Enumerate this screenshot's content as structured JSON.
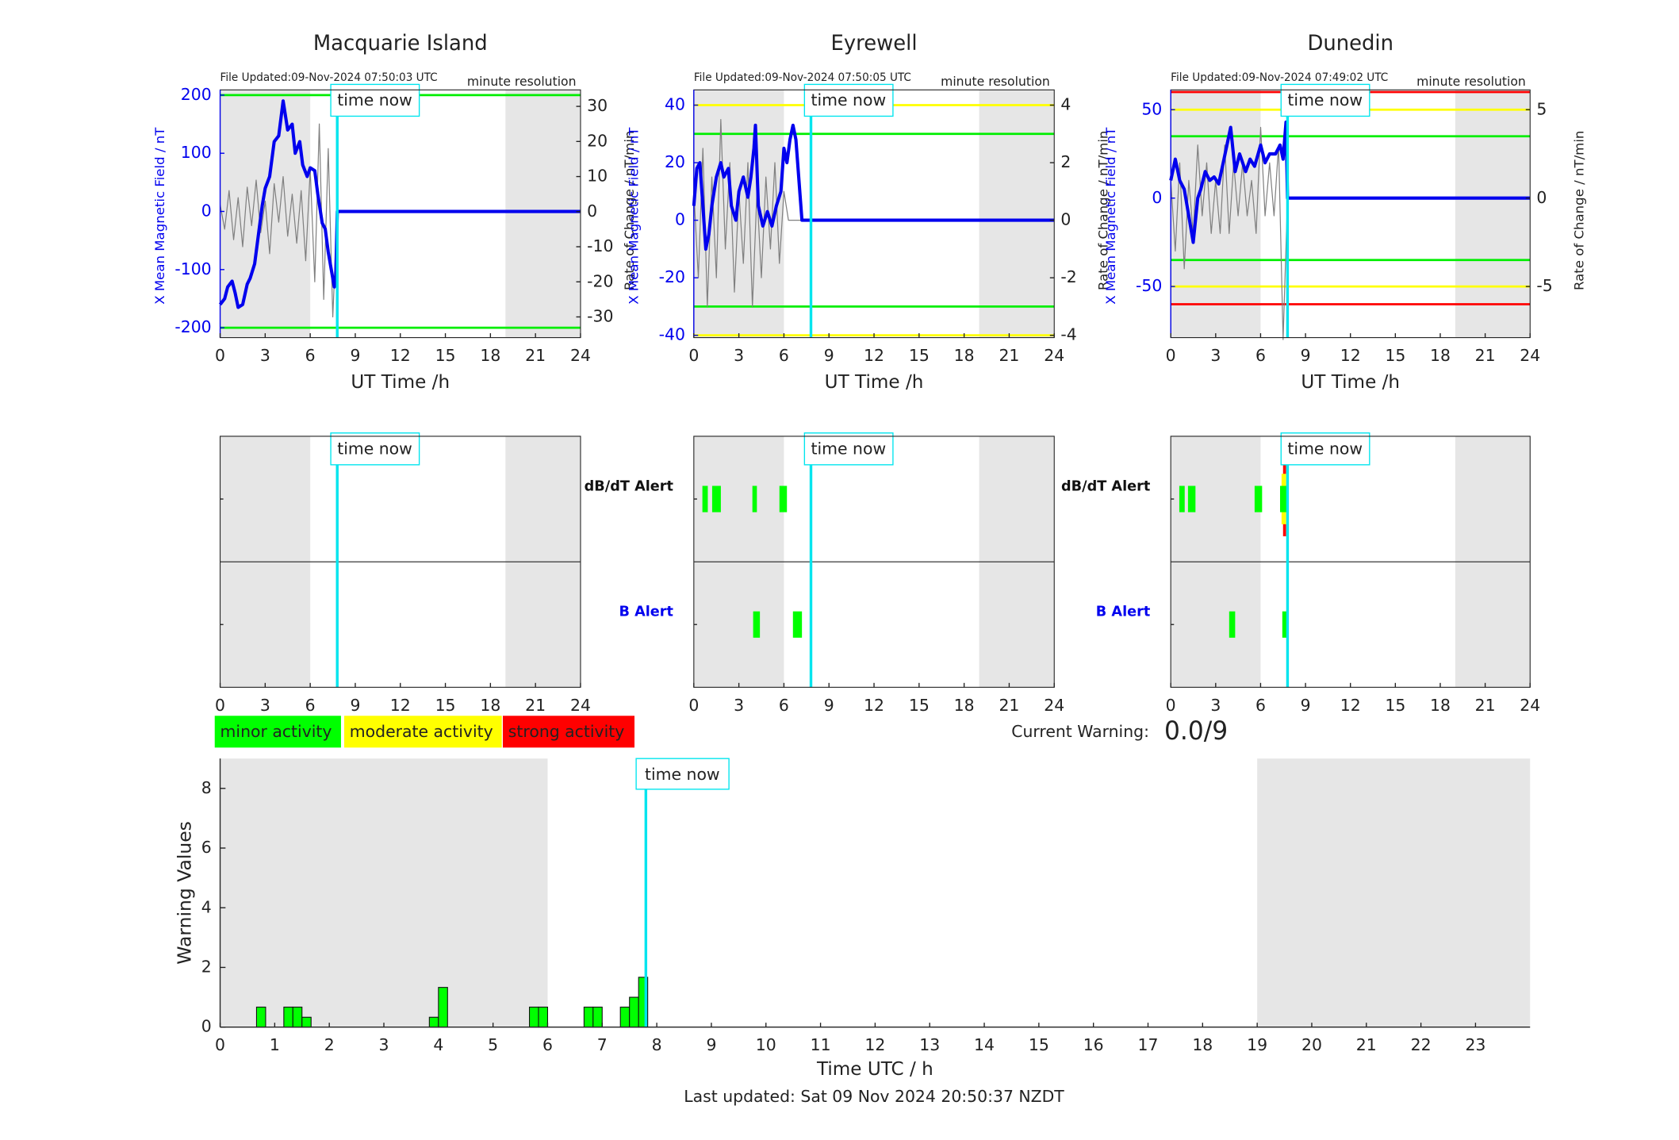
{
  "chart_data": [
    {
      "type": "line",
      "title": "Macquarie Island",
      "file_updated": "File Updated:09-Nov-2024 07:50:03 UTC",
      "resolution": "minute resolution",
      "xlabel": "UT Time /h",
      "ylabel": "X Mean Magnetic Field / nT",
      "y2label": "Rate of Change / nT/min",
      "xlim": [
        0,
        24
      ],
      "xticks": [
        0,
        3,
        6,
        9,
        12,
        15,
        18,
        21,
        24
      ],
      "ylim": [
        -217,
        209
      ],
      "yticks": [
        -200,
        -100,
        0,
        100,
        200
      ],
      "y2lim": [
        -35.9,
        34.7
      ],
      "y2ticks": [
        -30,
        -20,
        -10,
        0,
        10,
        20,
        30
      ],
      "shaded": [
        [
          0,
          6
        ],
        [
          19,
          24
        ]
      ],
      "now": {
        "value": 7.8,
        "label": "time now"
      },
      "hlines": [
        {
          "value": 200,
          "color": "#00ee00"
        },
        {
          "value": -200,
          "color": "#00ee00"
        }
      ],
      "series": [
        {
          "color": "#808080",
          "axis": "y2",
          "x": [
            0,
            0.3,
            0.6,
            0.9,
            1.2,
            1.5,
            1.8,
            2.1,
            2.4,
            2.7,
            3.0,
            3.3,
            3.6,
            3.9,
            4.2,
            4.5,
            4.8,
            5.1,
            5.4,
            5.7,
            6.0,
            6.3,
            6.6,
            6.9,
            7.2,
            7.5,
            7.8
          ],
          "values": [
            2,
            -5,
            6,
            -8,
            4,
            -10,
            7,
            -4,
            9,
            -6,
            3,
            -12,
            8,
            -3,
            10,
            -7,
            5,
            -9,
            6,
            -14,
            12,
            -20,
            25,
            -25,
            18,
            -30,
            0
          ]
        },
        {
          "color": "#0000ee",
          "axis": "y",
          "x": [
            0,
            0.3,
            0.5,
            0.8,
            1.0,
            1.2,
            1.5,
            1.8,
            2.0,
            2.3,
            2.5,
            2.8,
            3.0,
            3.3,
            3.6,
            3.9,
            4.2,
            4.5,
            4.8,
            5.0,
            5.3,
            5.5,
            5.8,
            6.0,
            6.3,
            6.5,
            6.8,
            7.0,
            7.2,
            7.4,
            7.6,
            7.7,
            7.8,
            24
          ],
          "values": [
            -160,
            -150,
            -130,
            -120,
            -140,
            -165,
            -160,
            -125,
            -115,
            -90,
            -50,
            10,
            40,
            60,
            120,
            130,
            190,
            140,
            150,
            100,
            120,
            80,
            60,
            75,
            70,
            30,
            -20,
            -30,
            -70,
            -100,
            -130,
            -110,
            0,
            0
          ]
        }
      ]
    },
    {
      "type": "line",
      "title": "Eyrewell",
      "file_updated": "File Updated:09-Nov-2024 07:50:05 UTC",
      "resolution": "minute resolution",
      "xlabel": "UT Time /h",
      "ylabel": "X Mean Magnetic Field / nT",
      "y2label": "Rate of Change / nT/min",
      "xlim": [
        0,
        24
      ],
      "xticks": [
        0,
        3,
        6,
        9,
        12,
        15,
        18,
        21,
        24
      ],
      "ylim": [
        -40.8,
        45.3
      ],
      "yticks": [
        -40,
        -20,
        0,
        20,
        40
      ],
      "y2lim": [
        -4.08,
        4.53
      ],
      "y2ticks": [
        -4,
        -2,
        0,
        2,
        4
      ],
      "shaded": [
        [
          0,
          6
        ],
        [
          19,
          24
        ]
      ],
      "now": {
        "value": 7.8,
        "label": "time now"
      },
      "hlines": [
        {
          "value": 40,
          "color": "#ffff00"
        },
        {
          "value": -40,
          "color": "#ffff00"
        },
        {
          "value": 30,
          "color": "#00ee00"
        },
        {
          "value": -30,
          "color": "#00ee00"
        }
      ],
      "series": [
        {
          "color": "#808080",
          "axis": "y2",
          "x": [
            0,
            0.3,
            0.6,
            0.9,
            1.2,
            1.5,
            1.8,
            2.1,
            2.4,
            2.7,
            3.0,
            3.3,
            3.6,
            3.9,
            4.2,
            4.5,
            4.8,
            5.1,
            5.4,
            5.7,
            6.0,
            6.3,
            6.6,
            6.9,
            7.2,
            7.5,
            7.8
          ],
          "values": [
            1,
            -2,
            2.5,
            -3,
            1.5,
            -2,
            3.5,
            -1,
            2,
            -2.5,
            1,
            -1.5,
            2,
            -3,
            1,
            -2,
            1.5,
            -1,
            2,
            -1.5,
            1,
            0,
            0,
            0,
            0,
            0,
            0
          ]
        },
        {
          "color": "#0000ee",
          "axis": "y",
          "x": [
            0,
            0.2,
            0.4,
            0.6,
            0.8,
            1.0,
            1.2,
            1.5,
            1.8,
            2.0,
            2.3,
            2.5,
            2.8,
            3.0,
            3.3,
            3.6,
            3.8,
            4.0,
            4.1,
            4.3,
            4.6,
            4.9,
            5.2,
            5.5,
            5.8,
            6.0,
            6.2,
            6.4,
            6.6,
            6.8,
            7.2,
            24
          ],
          "values": [
            5,
            18,
            20,
            5,
            -10,
            -5,
            5,
            15,
            20,
            15,
            18,
            5,
            0,
            10,
            15,
            8,
            15,
            25,
            33,
            5,
            -2,
            3,
            -2,
            5,
            10,
            25,
            20,
            28,
            33,
            28,
            0,
            0
          ]
        }
      ]
    },
    {
      "type": "line",
      "title": "Dunedin",
      "file_updated": "File Updated:09-Nov-2024 07:49:02 UTC",
      "resolution": "minute resolution",
      "xlabel": "UT Time /h",
      "ylabel": "X Mean Magnetic Field / nT",
      "y2label": "Rate of Change / nT/min",
      "xlim": [
        0,
        24
      ],
      "xticks": [
        0,
        3,
        6,
        9,
        12,
        15,
        18,
        21,
        24
      ],
      "ylim": [
        -78.9,
        61.2
      ],
      "yticks": [
        -50,
        0,
        50
      ],
      "y2lim": [
        -7.89,
        6.12
      ],
      "y2ticks": [
        -5,
        0,
        5
      ],
      "shaded": [
        [
          0,
          6
        ],
        [
          19,
          24
        ]
      ],
      "now": {
        "value": 7.8,
        "label": "time now"
      },
      "hlines": [
        {
          "value": 60,
          "color": "#ff0000"
        },
        {
          "value": -60,
          "color": "#ff0000"
        },
        {
          "value": 50,
          "color": "#ffff00"
        },
        {
          "value": -50,
          "color": "#ffff00"
        },
        {
          "value": 35,
          "color": "#00ee00"
        },
        {
          "value": -35,
          "color": "#00ee00"
        }
      ],
      "series": [
        {
          "color": "#808080",
          "axis": "y2",
          "x": [
            0,
            0.3,
            0.6,
            0.9,
            1.2,
            1.5,
            1.8,
            2.1,
            2.4,
            2.7,
            3.0,
            3.3,
            3.6,
            3.9,
            4.2,
            4.5,
            4.8,
            5.1,
            5.4,
            5.7,
            6.0,
            6.3,
            6.6,
            6.9,
            7.2,
            7.5,
            7.8
          ],
          "values": [
            1,
            -3,
            2,
            -4,
            1,
            -2,
            3,
            -1,
            2,
            -2,
            1,
            -2,
            3,
            -2,
            2,
            -1,
            2,
            -1,
            1,
            -2,
            4,
            -1,
            2,
            -1,
            3,
            -8,
            0
          ]
        },
        {
          "color": "#0000ee",
          "axis": "y",
          "x": [
            0,
            0.3,
            0.6,
            0.9,
            1.2,
            1.5,
            1.8,
            2.0,
            2.3,
            2.6,
            2.9,
            3.2,
            3.5,
            4.0,
            4.3,
            4.6,
            5.0,
            5.3,
            5.6,
            6.0,
            6.3,
            6.6,
            7.0,
            7.3,
            7.5,
            7.7,
            7.8,
            24
          ],
          "values": [
            10,
            22,
            10,
            5,
            -10,
            -25,
            0,
            5,
            15,
            10,
            12,
            8,
            20,
            40,
            15,
            25,
            15,
            22,
            18,
            30,
            20,
            25,
            25,
            30,
            22,
            43,
            0,
            0
          ]
        }
      ]
    },
    {
      "type": "alert",
      "xlim": [
        0,
        24
      ],
      "xticks": [
        0,
        3,
        6,
        9,
        12,
        15,
        18,
        21,
        24
      ],
      "shaded": [
        [
          0,
          6
        ],
        [
          19,
          24
        ]
      ],
      "now": {
        "value": 7.8,
        "label": "time now"
      },
      "rows": [
        {
          "events": []
        },
        {
          "events": []
        }
      ]
    },
    {
      "type": "alert",
      "xlim": [
        0,
        24
      ],
      "xticks": [
        0,
        3,
        6,
        9,
        12,
        15,
        18,
        21,
        24
      ],
      "shaded": [
        [
          0,
          6
        ],
        [
          19,
          24
        ]
      ],
      "now": {
        "value": 7.8,
        "label": "time now"
      },
      "row_labels": [
        "dB/dT Alert",
        "B Alert"
      ],
      "rows": [
        {
          "events": [
            {
              "start": 0.57,
              "end": 0.93,
              "level": 1
            },
            {
              "start": 1.22,
              "end": 1.8,
              "level": 1
            },
            {
              "start": 3.9,
              "end": 4.2,
              "level": 1
            },
            {
              "start": 5.7,
              "end": 6.2,
              "level": 1
            }
          ]
        },
        {
          "events": [
            {
              "start": 3.95,
              "end": 4.4,
              "level": 1
            },
            {
              "start": 6.6,
              "end": 7.2,
              "level": 1
            }
          ]
        }
      ]
    },
    {
      "type": "alert",
      "xlim": [
        0,
        24
      ],
      "xticks": [
        0,
        3,
        6,
        9,
        12,
        15,
        18,
        21,
        24
      ],
      "shaded": [
        [
          0,
          6
        ],
        [
          19,
          24
        ]
      ],
      "now": {
        "value": 7.8,
        "label": "time now"
      },
      "row_labels": [
        "dB/dT Alert",
        "B Alert"
      ],
      "rows": [
        {
          "events": [
            {
              "start": 0.57,
              "end": 0.93,
              "level": 1
            },
            {
              "start": 1.15,
              "end": 1.65,
              "level": 1
            },
            {
              "start": 5.6,
              "end": 6.1,
              "level": 1
            },
            {
              "start": 7.5,
              "end": 7.7,
              "level": 3
            },
            {
              "start": 7.4,
              "end": 7.7,
              "level": 2
            },
            {
              "start": 7.3,
              "end": 7.75,
              "level": 1
            }
          ]
        },
        {
          "events": [
            {
              "start": 3.9,
              "end": 4.3,
              "level": 1
            },
            {
              "start": 7.45,
              "end": 7.8,
              "level": 1
            }
          ]
        }
      ]
    },
    {
      "type": "bar",
      "xlabel": "Time UTC / h",
      "ylabel": "Warning Values",
      "xlim": [
        0,
        24
      ],
      "xticks": [
        0,
        1,
        2,
        3,
        4,
        5,
        6,
        7,
        8,
        9,
        10,
        11,
        12,
        13,
        14,
        15,
        16,
        17,
        18,
        19,
        20,
        21,
        22,
        23
      ],
      "ylim": [
        0,
        9
      ],
      "yticks": [
        0,
        2,
        4,
        6,
        8
      ],
      "shaded": [
        [
          0,
          6
        ],
        [
          19,
          24
        ]
      ],
      "now": {
        "value": 7.8,
        "label": "time now"
      },
      "color": "#00ff00",
      "bin_width": 0.1667,
      "x": [
        0.667,
        1.167,
        1.333,
        1.5,
        3.833,
        4.0,
        5.667,
        5.833,
        6.667,
        6.833,
        7.333,
        7.5,
        7.667
      ],
      "values": [
        0.67,
        0.67,
        0.67,
        0.33,
        0.33,
        1.33,
        0.67,
        0.67,
        0.67,
        0.67,
        0.67,
        1.0,
        1.67
      ]
    }
  ],
  "legend": [
    {
      "label": "minor activity",
      "color": "#00ff00"
    },
    {
      "label": "moderate activity",
      "color": "#ffff00"
    },
    {
      "label": "strong activity",
      "color": "#ff0000"
    }
  ],
  "status": {
    "label": "Current Warning:",
    "value": "0.0/9"
  },
  "footer": "Last updated: Sat 09 Nov 2024 20:50:37 NZDT"
}
